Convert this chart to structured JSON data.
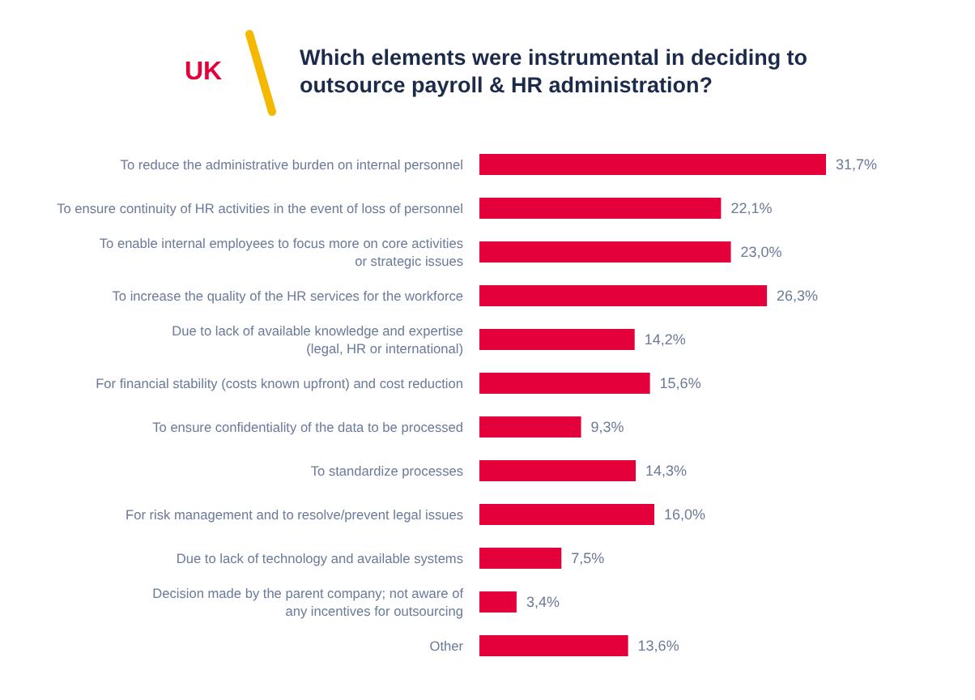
{
  "chart_data": {
    "type": "bar",
    "orientation": "horizontal",
    "title": "Which elements were instrumental in deciding to outsource payroll & HR administration?",
    "annotations": [
      "UK"
    ],
    "categories": [
      "To reduce the administrative burden on internal personnel",
      "To ensure continuity of HR activities in the event of loss of personnel",
      "To enable internal employees to focus more on core activities\nor strategic issues",
      "To increase the quality of the HR services for the workforce",
      "Due to lack of available knowledge and expertise\n(legal, HR or international)",
      "For financial stability (costs known upfront) and cost reduction",
      "To ensure confidentiality of the data to be processed",
      "To standardize processes",
      "For risk management and to resolve/prevent legal issues",
      "Due to lack of technology and available systems",
      "Decision made by the parent company; not aware of\nany incentives for outsourcing",
      "Other"
    ],
    "values": [
      31.7,
      22.1,
      23.0,
      26.3,
      14.2,
      15.6,
      9.3,
      14.3,
      16.0,
      7.5,
      3.4,
      13.6
    ],
    "value_labels": [
      "31,7%",
      "22,1%",
      "23,0%",
      "26,3%",
      "14,2%",
      "15,6%",
      "9,3%",
      "14,3%",
      "16,0%",
      "7,5%",
      "3,4%",
      "13,6%"
    ],
    "color": "#e4003a"
  }
}
